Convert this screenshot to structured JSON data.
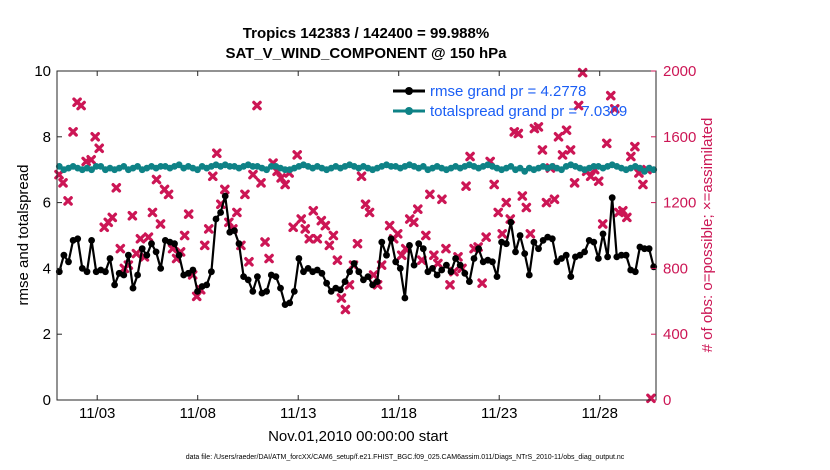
{
  "chart_data": {
    "type": "line",
    "title_line1": "Tropics 142383 / 142400 = 99.988%",
    "title_line2": "SAT_V_WIND_COMPONENT @ 150 hPa",
    "xlabel": "Nov.01,2010 00:00:00 start",
    "ylabel_left": "rmse and totalspread",
    "ylabel_right": "# of obs: o=possible; ×=assimilated",
    "footer": "data file: /Users/raeder/DAI/ATM_forcXX/CAM6_setup/f.e21.FHIST_BGC.f09_025.CAM6assim.011/Diags_NTrS_2010-11/obs_diag_output.nc",
    "xlim": [
      1,
      30.8
    ],
    "ylim_left": [
      0,
      10
    ],
    "ylim_right": [
      0,
      2000
    ],
    "x_ticks": [
      {
        "v": 3,
        "label": "11/03"
      },
      {
        "v": 8,
        "label": "11/08"
      },
      {
        "v": 13,
        "label": "11/13"
      },
      {
        "v": 18,
        "label": "11/18"
      },
      {
        "v": 23,
        "label": "11/23"
      },
      {
        "v": 28,
        "label": "11/28"
      }
    ],
    "y_ticks_left": [
      "0",
      "2",
      "4",
      "6",
      "8",
      "10"
    ],
    "y_ticks_right": [
      "0",
      "400",
      "800",
      "1200",
      "1600",
      "2000"
    ],
    "colors": {
      "rmse": "#000000",
      "spread": "#0e8286",
      "obs": "#cc1655",
      "legend_text": "#1a5ef5"
    },
    "series": [
      {
        "name": "rmse grand pr = 4.2778",
        "color": "#000000",
        "values": [
          3.9,
          4.4,
          4.2,
          4.85,
          4.9,
          4.0,
          3.9,
          4.85,
          3.9,
          3.95,
          3.9,
          4.3,
          3.5,
          3.85,
          3.8,
          4.4,
          3.4,
          3.8,
          4.6,
          4.4,
          4.75,
          4.5,
          4.0,
          4.85,
          4.8,
          4.75,
          4.4,
          3.8,
          3.85,
          3.95,
          3.3,
          3.45,
          3.5,
          3.9,
          5.5,
          5.7,
          6.2,
          5.1,
          5.15,
          4.75,
          3.75,
          3.65,
          3.3,
          3.75,
          3.25,
          3.3,
          3.8,
          3.75,
          3.4,
          2.9,
          2.95,
          3.3,
          4.3,
          3.9,
          4.0,
          3.9,
          3.95,
          3.85,
          3.55,
          3.3,
          3.4,
          3.35,
          3.6,
          3.9,
          4.15,
          3.9,
          3.65,
          3.75,
          3.5,
          3.6,
          4.8,
          4.4,
          4.9,
          4.2,
          4.0,
          3.1,
          4.7,
          4.1,
          4.75,
          4.6,
          3.9,
          4.0,
          3.8,
          3.95,
          4.1,
          3.9,
          4.3,
          4.1,
          3.85,
          3.6,
          4.3,
          4.6,
          4.2,
          4.25,
          4.2,
          3.75,
          4.8,
          4.75,
          5.4,
          4.5,
          5.0,
          4.45,
          3.8,
          4.8,
          4.6,
          4.85,
          4.95,
          4.9,
          4.2,
          4.3,
          4.4,
          3.75,
          4.35,
          4.4,
          4.5,
          4.85,
          4.8,
          4.3,
          5.05,
          4.35,
          6.15,
          4.35,
          4.4,
          4.4,
          3.95,
          3.9,
          4.65,
          4.6,
          4.6,
          4.05
        ],
        "spread_values_note": "see next series"
      },
      {
        "name": "totalspread grand pr = 7.0309",
        "color": "#0e8286",
        "values": [
          7.1,
          7.0,
          7.05,
          7.1,
          7.05,
          7.0,
          7.05,
          7.0,
          7.1,
          7.1,
          7.0,
          7.05,
          7.0,
          7.05,
          7.1,
          7.0,
          7.05,
          7.1,
          7.0,
          7.05,
          7.1,
          7.05,
          7.1,
          7.1,
          7.05,
          7.1,
          7.15,
          7.05,
          7.1,
          7.05,
          7.0,
          7.1,
          7.05,
          7.1,
          7.15,
          7.1,
          7.15,
          7.1,
          7.1,
          7.05,
          7.1,
          7.15,
          7.1,
          7.1,
          7.05,
          7.0,
          7.1,
          7.1,
          7.05,
          7.0,
          7.0,
          7.05,
          7.1,
          7.15,
          7.1,
          7.05,
          7.1,
          7.05,
          7.0,
          7.05,
          7.1,
          7.05,
          7.1,
          7.15,
          7.1,
          7.05,
          7.1,
          7.05,
          7.0,
          7.05,
          7.1,
          7.15,
          7.1,
          7.1,
          7.05,
          7.1,
          7.15,
          7.1,
          7.05,
          7.1,
          7.0,
          7.05,
          7.1,
          7.05,
          7.0,
          7.05,
          7.1,
          7.05,
          7.1,
          7.15,
          7.1,
          7.05,
          7.1,
          7.15,
          7.1,
          7.05,
          7.0,
          7.05,
          7.1,
          7.0,
          7.05,
          6.95,
          7.05,
          7.0,
          7.05,
          7.1,
          7.05,
          7.1,
          7.05,
          7.0,
          7.1,
          7.15,
          7.1,
          7.05,
          7.0,
          7.05,
          7.1,
          7.1,
          7.05,
          7.1,
          7.15,
          7.1,
          7.05,
          7.0,
          7.05,
          7.1,
          7.05,
          6.95,
          7.05,
          7.0
        ]
      },
      {
        "name": "observations assimilated",
        "color": "#cc1655",
        "axis": "right",
        "points": [
          [
            1.1,
            1370
          ],
          [
            1.3,
            1320
          ],
          [
            1.55,
            1210
          ],
          [
            1.8,
            1630
          ],
          [
            2.0,
            1810
          ],
          [
            2.2,
            1790
          ],
          [
            2.45,
            1450
          ],
          [
            2.7,
            1460
          ],
          [
            2.9,
            1600
          ],
          [
            3.1,
            1530
          ],
          [
            3.35,
            1050
          ],
          [
            3.55,
            1080
          ],
          [
            3.75,
            1110
          ],
          [
            3.95,
            1290
          ],
          [
            4.15,
            920
          ],
          [
            4.35,
            800
          ],
          [
            4.55,
            820
          ],
          [
            4.75,
            1120
          ],
          [
            4.95,
            890
          ],
          [
            5.15,
            980
          ],
          [
            5.35,
            870
          ],
          [
            5.55,
            990
          ],
          [
            5.75,
            1140
          ],
          [
            5.95,
            1340
          ],
          [
            6.15,
            1070
          ],
          [
            6.35,
            1280
          ],
          [
            6.55,
            1250
          ],
          [
            6.75,
            920
          ],
          [
            6.95,
            860
          ],
          [
            7.15,
            900
          ],
          [
            7.35,
            1000
          ],
          [
            7.55,
            1130
          ],
          [
            7.75,
            760
          ],
          [
            7.95,
            630
          ],
          [
            8.15,
            670
          ],
          [
            8.35,
            940
          ],
          [
            8.55,
            1040
          ],
          [
            8.75,
            1360
          ],
          [
            8.95,
            1500
          ],
          [
            9.15,
            1190
          ],
          [
            9.35,
            1280
          ],
          [
            9.55,
            1080
          ],
          [
            9.75,
            1040
          ],
          [
            9.95,
            1140
          ],
          [
            10.15,
            940
          ],
          [
            10.35,
            1250
          ],
          [
            10.55,
            840
          ],
          [
            10.75,
            1370
          ],
          [
            10.95,
            1790
          ],
          [
            11.15,
            1320
          ],
          [
            11.35,
            960
          ],
          [
            11.55,
            860
          ],
          [
            11.75,
            1440
          ],
          [
            11.95,
            1390
          ],
          [
            12.15,
            1350
          ],
          [
            12.35,
            1310
          ],
          [
            12.55,
            1380
          ],
          [
            12.75,
            1050
          ],
          [
            12.95,
            1490
          ],
          [
            13.15,
            1100
          ],
          [
            13.35,
            1040
          ],
          [
            13.55,
            980
          ],
          [
            13.75,
            1150
          ],
          [
            13.95,
            980
          ],
          [
            14.15,
            1090
          ],
          [
            14.35,
            1060
          ],
          [
            14.55,
            940
          ],
          [
            14.75,
            1000
          ],
          [
            14.95,
            850
          ],
          [
            15.15,
            620
          ],
          [
            15.35,
            550
          ],
          [
            15.55,
            700
          ],
          [
            15.75,
            820
          ],
          [
            15.95,
            950
          ],
          [
            16.15,
            1360
          ],
          [
            16.35,
            1190
          ],
          [
            16.55,
            1140
          ],
          [
            16.75,
            760
          ],
          [
            16.95,
            700
          ],
          [
            17.15,
            820
          ],
          [
            17.55,
            1060
          ],
          [
            17.75,
            980
          ],
          [
            17.95,
            1010
          ],
          [
            18.15,
            880
          ],
          [
            18.35,
            920
          ],
          [
            18.55,
            1100
          ],
          [
            18.75,
            1080
          ],
          [
            18.95,
            1160
          ],
          [
            19.15,
            850
          ],
          [
            19.35,
            1000
          ],
          [
            19.55,
            1250
          ],
          [
            19.75,
            880
          ],
          [
            19.95,
            830
          ],
          [
            20.15,
            1220
          ],
          [
            20.35,
            920
          ],
          [
            20.55,
            700
          ],
          [
            20.75,
            780
          ],
          [
            20.95,
            870
          ],
          [
            21.15,
            800
          ],
          [
            21.35,
            1300
          ],
          [
            21.55,
            1480
          ],
          [
            21.75,
            920
          ],
          [
            21.95,
            930
          ],
          [
            22.15,
            710
          ],
          [
            22.35,
            990
          ],
          [
            22.55,
            1450
          ],
          [
            22.75,
            1310
          ],
          [
            22.95,
            1140
          ],
          [
            23.15,
            1010
          ],
          [
            23.35,
            1200
          ],
          [
            23.55,
            1100
          ],
          [
            23.75,
            1630
          ],
          [
            23.95,
            1620
          ],
          [
            24.15,
            1240
          ],
          [
            24.35,
            1170
          ],
          [
            24.55,
            1010
          ],
          [
            24.75,
            1650
          ],
          [
            24.95,
            1660
          ],
          [
            25.15,
            1520
          ],
          [
            25.35,
            1200
          ],
          [
            25.55,
            1410
          ],
          [
            25.75,
            1220
          ],
          [
            25.95,
            1600
          ],
          [
            26.15,
            1490
          ],
          [
            26.35,
            1640
          ],
          [
            26.55,
            1520
          ],
          [
            26.75,
            1320
          ],
          [
            26.95,
            1790
          ],
          [
            27.15,
            1990
          ],
          [
            27.35,
            1390
          ],
          [
            27.55,
            1360
          ],
          [
            27.75,
            1400
          ],
          [
            27.95,
            1330
          ],
          [
            28.15,
            1070
          ],
          [
            28.35,
            1560
          ],
          [
            28.55,
            1850
          ],
          [
            28.75,
            1770
          ],
          [
            28.95,
            1140
          ],
          [
            29.15,
            1150
          ],
          [
            29.35,
            1110
          ],
          [
            29.55,
            1480
          ],
          [
            29.75,
            1540
          ],
          [
            29.95,
            1380
          ],
          [
            30.15,
            1310
          ],
          [
            30.35,
            1400
          ],
          [
            30.55,
            10
          ]
        ]
      }
    ]
  }
}
